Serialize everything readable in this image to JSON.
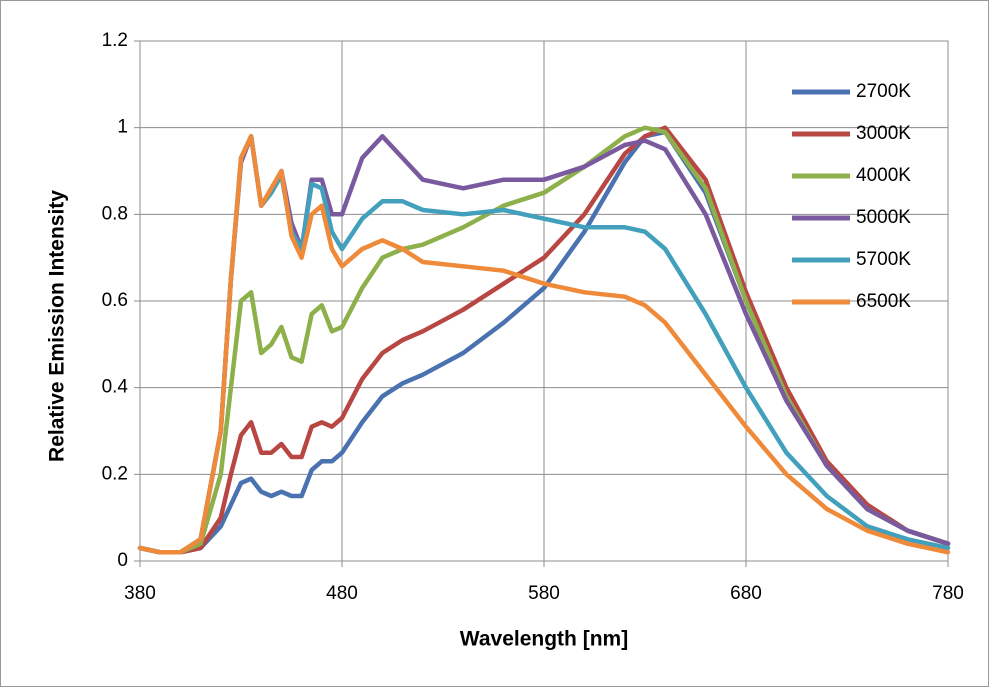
{
  "chart_data": {
    "type": "line",
    "x_label": "Wavelength  [nm]",
    "y_label": "Relative Emission Intensity",
    "x": [
      380,
      390,
      400,
      410,
      420,
      425,
      430,
      435,
      440,
      445,
      450,
      455,
      460,
      465,
      470,
      475,
      480,
      490,
      500,
      510,
      520,
      540,
      560,
      580,
      600,
      620,
      630,
      640,
      660,
      680,
      700,
      720,
      740,
      760,
      780
    ],
    "xlim": [
      380,
      780
    ],
    "xticks": [
      380,
      480,
      580,
      680,
      780
    ],
    "ylim": [
      0,
      1.2
    ],
    "yticks": [
      0,
      0.2,
      0.4,
      0.6,
      0.8,
      1,
      1.2
    ],
    "grid": true,
    "legend": "upper right",
    "series": [
      {
        "name": "2700K",
        "color": "#4a72b0",
        "values": [
          0.03,
          0.02,
          0.02,
          0.03,
          0.08,
          0.13,
          0.18,
          0.19,
          0.16,
          0.15,
          0.16,
          0.15,
          0.15,
          0.21,
          0.23,
          0.23,
          0.25,
          0.32,
          0.38,
          0.41,
          0.43,
          0.48,
          0.55,
          0.63,
          0.76,
          0.92,
          0.98,
          0.99,
          0.85,
          0.6,
          0.38,
          0.22,
          0.12,
          0.07,
          0.04
        ]
      },
      {
        "name": "3000K",
        "color": "#b84744",
        "values": [
          0.03,
          0.02,
          0.02,
          0.03,
          0.1,
          0.2,
          0.29,
          0.32,
          0.25,
          0.25,
          0.27,
          0.24,
          0.24,
          0.31,
          0.32,
          0.31,
          0.33,
          0.42,
          0.48,
          0.51,
          0.53,
          0.58,
          0.64,
          0.7,
          0.8,
          0.94,
          0.98,
          1.0,
          0.88,
          0.62,
          0.4,
          0.23,
          0.13,
          0.07,
          0.04
        ]
      },
      {
        "name": "4000K",
        "color": "#8db04a",
        "values": [
          0.03,
          0.02,
          0.02,
          0.04,
          0.2,
          0.4,
          0.6,
          0.62,
          0.48,
          0.5,
          0.54,
          0.47,
          0.46,
          0.57,
          0.59,
          0.53,
          0.54,
          0.63,
          0.7,
          0.72,
          0.73,
          0.77,
          0.82,
          0.85,
          0.91,
          0.98,
          1.0,
          0.99,
          0.86,
          0.6,
          0.38,
          0.22,
          0.12,
          0.07,
          0.04
        ]
      },
      {
        "name": "5000K",
        "color": "#7a5a9e",
        "values": [
          0.03,
          0.02,
          0.02,
          0.05,
          0.3,
          0.65,
          0.92,
          0.98,
          0.82,
          0.85,
          0.9,
          0.78,
          0.72,
          0.88,
          0.88,
          0.8,
          0.8,
          0.93,
          0.98,
          0.93,
          0.88,
          0.86,
          0.88,
          0.88,
          0.91,
          0.96,
          0.97,
          0.95,
          0.8,
          0.57,
          0.37,
          0.22,
          0.12,
          0.07,
          0.04
        ]
      },
      {
        "name": "5700K",
        "color": "#42a0bc",
        "values": [
          0.03,
          0.02,
          0.02,
          0.05,
          0.3,
          0.65,
          0.93,
          0.98,
          0.82,
          0.85,
          0.89,
          0.76,
          0.72,
          0.87,
          0.86,
          0.76,
          0.72,
          0.79,
          0.83,
          0.83,
          0.81,
          0.8,
          0.81,
          0.79,
          0.77,
          0.77,
          0.76,
          0.72,
          0.57,
          0.4,
          0.25,
          0.15,
          0.08,
          0.05,
          0.03
        ]
      },
      {
        "name": "6500K",
        "color": "#ee8a3a",
        "values": [
          0.03,
          0.02,
          0.02,
          0.05,
          0.3,
          0.65,
          0.93,
          0.98,
          0.82,
          0.86,
          0.9,
          0.75,
          0.7,
          0.8,
          0.82,
          0.72,
          0.68,
          0.72,
          0.74,
          0.72,
          0.69,
          0.68,
          0.67,
          0.64,
          0.62,
          0.61,
          0.59,
          0.55,
          0.43,
          0.31,
          0.2,
          0.12,
          0.07,
          0.04,
          0.02
        ]
      }
    ]
  }
}
